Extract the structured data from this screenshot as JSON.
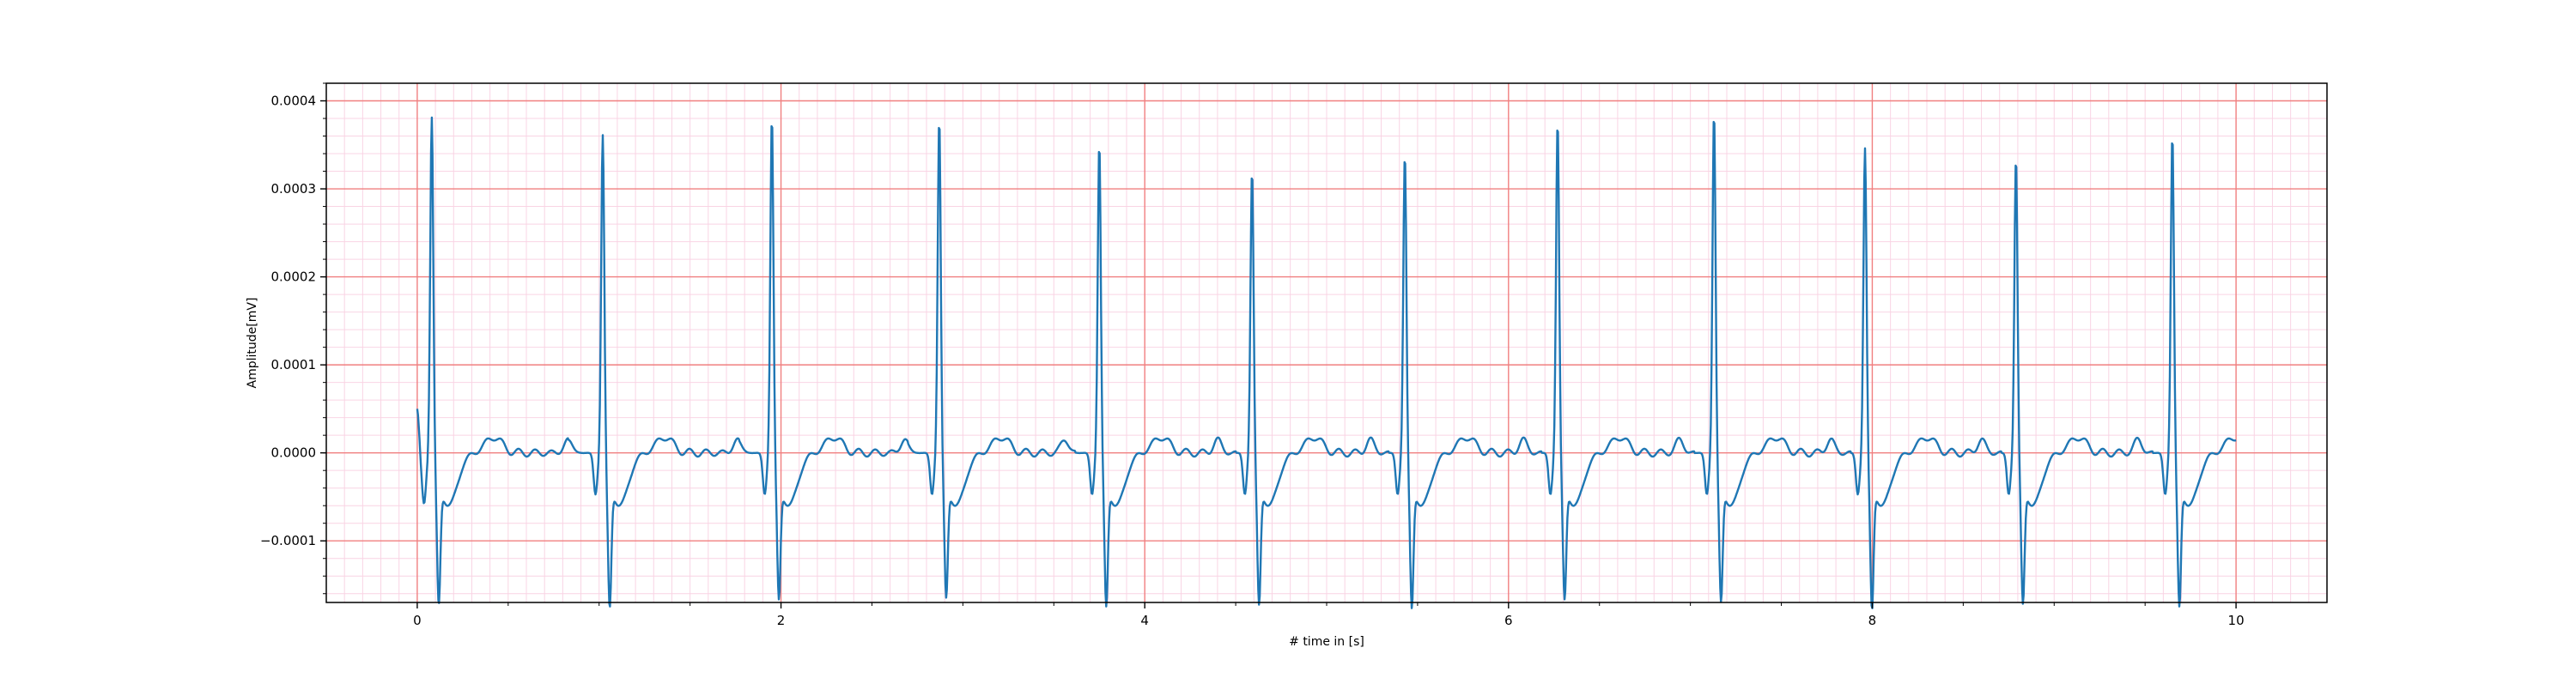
{
  "chart_data": {
    "type": "line",
    "title": "",
    "xlabel": "# time in [s]",
    "ylabel": "Amplitude[mV]",
    "xlim": [
      -0.5,
      10.5
    ],
    "ylim": [
      -0.00017,
      0.00042
    ],
    "xticks": [
      0,
      2,
      4,
      6,
      8,
      10
    ],
    "xtick_labels": [
      "0",
      "2",
      "4",
      "6",
      "8",
      "10"
    ],
    "yticks": [
      -0.0001,
      0.0,
      0.0001,
      0.0002,
      0.0003,
      0.0004
    ],
    "ytick_labels": [
      "−0.0001",
      "0.0000",
      "0.0001",
      "0.0002",
      "0.0003",
      "0.0004"
    ],
    "grid": {
      "major": true,
      "minor": true,
      "major_color": "#f08080",
      "minor_color": "#f9d4e4"
    },
    "line_color": "#1f77b4",
    "series": [
      {
        "r_peak_times": [
          0.08,
          1.02,
          1.95,
          2.87,
          3.75,
          4.59,
          5.43,
          6.27,
          7.13,
          7.96,
          8.79,
          9.65
        ],
        "r_peak_values": [
          0.000393,
          0.000373,
          0.000393,
          0.000391,
          0.000363,
          0.000332,
          0.000351,
          0.000388,
          0.000398,
          0.000358,
          0.000347,
          0.000373
        ],
        "s_trough_values": [
          -0.000138,
          -0.000142,
          -0.000132,
          -0.00013,
          -0.00014,
          -0.000138,
          -0.000142,
          -0.000132,
          -0.000135,
          -0.000144,
          -0.000137,
          -0.00014
        ]
      }
    ]
  }
}
